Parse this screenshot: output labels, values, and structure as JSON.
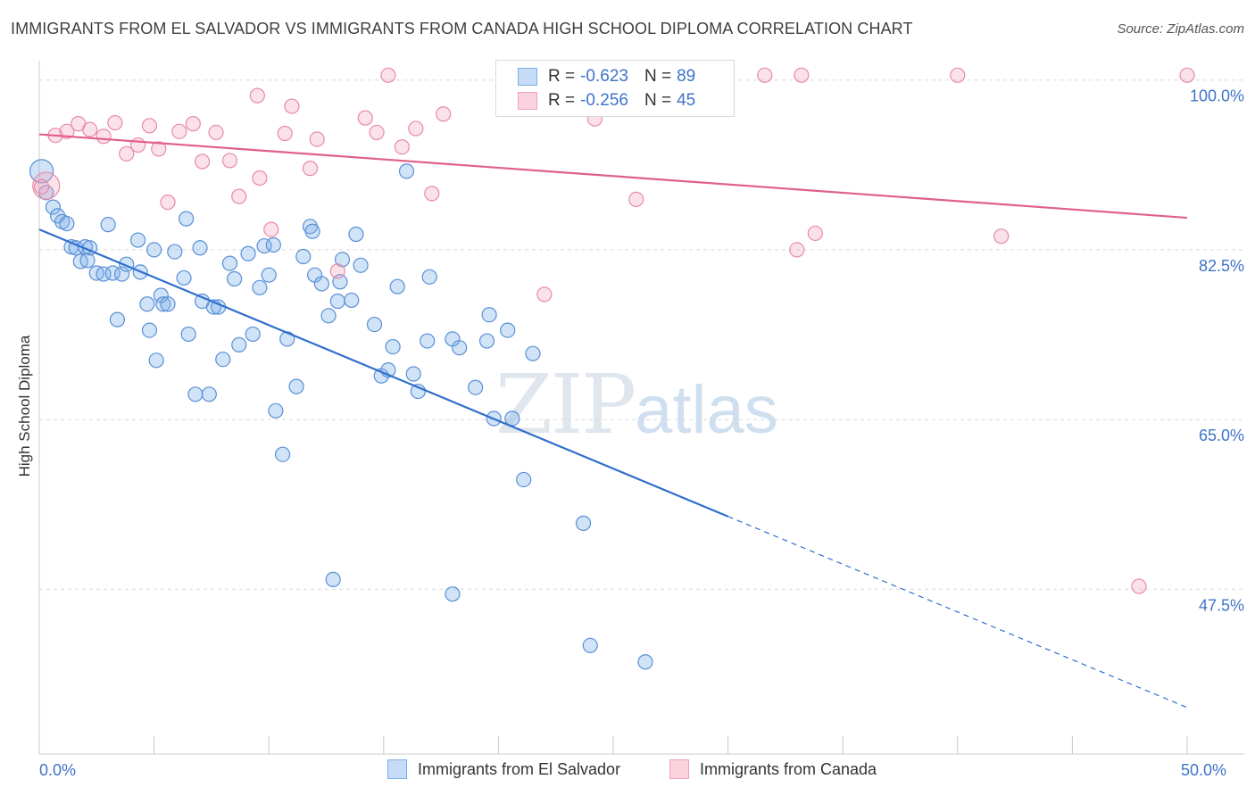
{
  "header": {
    "title": "IMMIGRANTS FROM EL SALVADOR VS IMMIGRANTS FROM CANADA HIGH SCHOOL DIPLOMA CORRELATION CHART",
    "source": "Source: ZipAtlas.com"
  },
  "watermark": {
    "zip": "ZIP",
    "atlas": "atlas"
  },
  "legend_top": {
    "r_label": "R = ",
    "n_label": "N = ",
    "rows": [
      {
        "r": "-0.623",
        "n": "89",
        "color": "#7aaee8"
      },
      {
        "r": "-0.256",
        "n": "45",
        "color": "#f2a0b8"
      }
    ]
  },
  "chart_data": {
    "type": "scatter",
    "xlabel": "",
    "ylabel": "High School Diploma",
    "xlim": [
      0,
      50
    ],
    "ylim": [
      30.5,
      102
    ],
    "x_tick_labels": [
      {
        "value": 0,
        "label": "0.0%"
      },
      {
        "value": 50,
        "label": "50.0%"
      }
    ],
    "y_tick_labels": [
      {
        "value": 100,
        "label": "100.0%"
      },
      {
        "value": 82.5,
        "label": "82.5%"
      },
      {
        "value": 65,
        "label": "65.0%"
      },
      {
        "value": 47.5,
        "label": "47.5%"
      }
    ],
    "grid": true,
    "legend_position": "bottom-center",
    "series": [
      {
        "name": "Immigrants from El Salvador",
        "color": "#7aaee8",
        "stroke": "#5a8fd6",
        "trend": {
          "x0": 0,
          "y0": 84.6,
          "x1": 30,
          "y1": 55.0,
          "dash_to_x": 50,
          "dash_to_y": 35.3,
          "color": "#2f6fce"
        },
        "points": [
          [
            0.1,
            90.6
          ],
          [
            0.3,
            88.4
          ],
          [
            0.6,
            86.9
          ],
          [
            0.8,
            86.0
          ],
          [
            1.0,
            85.4
          ],
          [
            1.2,
            85.2
          ],
          [
            1.4,
            82.8
          ],
          [
            1.6,
            82.7
          ],
          [
            1.8,
            81.3
          ],
          [
            2.0,
            82.8
          ],
          [
            2.2,
            82.7
          ],
          [
            2.5,
            80.1
          ],
          [
            2.8,
            80.0
          ],
          [
            3.0,
            85.1
          ],
          [
            3.2,
            80.1
          ],
          [
            3.6,
            80.0
          ],
          [
            3.8,
            81.0
          ],
          [
            4.3,
            83.5
          ],
          [
            4.4,
            80.2
          ],
          [
            3.4,
            75.3
          ],
          [
            4.7,
            76.9
          ],
          [
            4.8,
            74.2
          ],
          [
            5.1,
            71.1
          ],
          [
            5.3,
            77.8
          ],
          [
            5.4,
            76.9
          ],
          [
            5.6,
            76.9
          ],
          [
            5.9,
            82.3
          ],
          [
            6.3,
            79.6
          ],
          [
            6.4,
            85.7
          ],
          [
            6.5,
            73.8
          ],
          [
            6.8,
            67.6
          ],
          [
            7.0,
            82.7
          ],
          [
            7.1,
            77.2
          ],
          [
            7.4,
            67.6
          ],
          [
            7.6,
            76.6
          ],
          [
            7.8,
            76.6
          ],
          [
            8.0,
            71.2
          ],
          [
            8.3,
            81.1
          ],
          [
            8.5,
            79.5
          ],
          [
            8.7,
            72.7
          ],
          [
            9.1,
            82.1
          ],
          [
            9.3,
            73.8
          ],
          [
            9.6,
            78.6
          ],
          [
            9.8,
            82.9
          ],
          [
            10.0,
            79.9
          ],
          [
            10.2,
            83.0
          ],
          [
            10.3,
            65.9
          ],
          [
            10.6,
            61.4
          ],
          [
            10.8,
            73.3
          ],
          [
            11.2,
            68.4
          ],
          [
            11.5,
            81.8
          ],
          [
            11.8,
            84.9
          ],
          [
            11.9,
            84.4
          ],
          [
            12.0,
            79.9
          ],
          [
            12.3,
            79.0
          ],
          [
            12.6,
            75.7
          ],
          [
            12.8,
            48.5
          ],
          [
            13.0,
            77.2
          ],
          [
            13.1,
            79.2
          ],
          [
            13.2,
            81.5
          ],
          [
            13.6,
            77.3
          ],
          [
            13.8,
            84.1
          ],
          [
            14.0,
            80.9
          ],
          [
            14.6,
            74.8
          ],
          [
            14.9,
            69.5
          ],
          [
            15.2,
            70.1
          ],
          [
            15.4,
            72.5
          ],
          [
            15.6,
            78.7
          ],
          [
            16.0,
            90.6
          ],
          [
            16.3,
            69.7
          ],
          [
            16.5,
            67.9
          ],
          [
            16.9,
            73.1
          ],
          [
            17.0,
            79.7
          ],
          [
            18.0,
            73.3
          ],
          [
            18.3,
            72.4
          ],
          [
            19.0,
            68.3
          ],
          [
            19.5,
            73.1
          ],
          [
            19.6,
            75.8
          ],
          [
            19.8,
            65.1
          ],
          [
            20.4,
            74.2
          ],
          [
            20.6,
            65.1
          ],
          [
            21.1,
            58.8
          ],
          [
            21.5,
            71.8
          ],
          [
            18.0,
            47.0
          ],
          [
            23.7,
            54.3
          ],
          [
            24.0,
            41.7
          ],
          [
            26.4,
            40.0
          ],
          [
            5.0,
            82.5
          ],
          [
            2.1,
            81.4
          ]
        ]
      },
      {
        "name": "Immigrants from Canada",
        "color": "#f2a0b8",
        "stroke": "#e88aa6",
        "trend": {
          "x0": 0,
          "y0": 94.4,
          "x1": 50,
          "y1": 85.8,
          "color": "#e0608a"
        },
        "points": [
          [
            0.3,
            89.1
          ],
          [
            0.7,
            94.3
          ],
          [
            1.2,
            94.7
          ],
          [
            1.7,
            95.5
          ],
          [
            2.2,
            94.9
          ],
          [
            2.8,
            94.2
          ],
          [
            3.3,
            95.6
          ],
          [
            3.8,
            92.4
          ],
          [
            4.3,
            93.3
          ],
          [
            4.8,
            95.3
          ],
          [
            5.2,
            92.9
          ],
          [
            5.6,
            87.4
          ],
          [
            6.1,
            94.7
          ],
          [
            6.7,
            95.5
          ],
          [
            7.1,
            91.6
          ],
          [
            7.7,
            94.6
          ],
          [
            8.3,
            91.7
          ],
          [
            8.7,
            88.0
          ],
          [
            9.5,
            98.4
          ],
          [
            9.6,
            89.9
          ],
          [
            10.1,
            84.6
          ],
          [
            10.7,
            94.5
          ],
          [
            11.0,
            97.3
          ],
          [
            11.8,
            90.9
          ],
          [
            12.1,
            93.9
          ],
          [
            13.0,
            80.3
          ],
          [
            14.2,
            96.1
          ],
          [
            14.7,
            94.6
          ],
          [
            15.2,
            100.5
          ],
          [
            15.8,
            93.1
          ],
          [
            16.4,
            95.0
          ],
          [
            17.1,
            88.3
          ],
          [
            17.6,
            96.5
          ],
          [
            22.0,
            77.9
          ],
          [
            24.2,
            96.0
          ],
          [
            26.0,
            87.7
          ],
          [
            31.6,
            100.5
          ],
          [
            33.0,
            82.5
          ],
          [
            33.2,
            100.5
          ],
          [
            33.8,
            84.2
          ],
          [
            40.0,
            100.5
          ],
          [
            41.9,
            83.9
          ],
          [
            47.9,
            47.8
          ],
          [
            50.0,
            100.5
          ],
          [
            0.1,
            89.0
          ]
        ]
      }
    ]
  }
}
